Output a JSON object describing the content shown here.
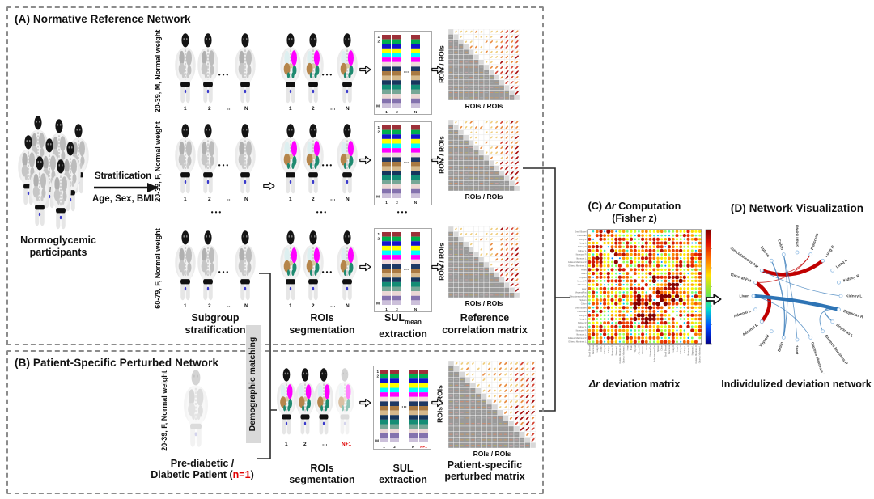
{
  "panels": {
    "a": {
      "title": "(A) Normative Reference Network",
      "crowd_label_line1": "Normoglycemic",
      "crowd_label_line2": "participants",
      "strat_label": "Stratification",
      "strat_sub": "Age, Sex, BMI",
      "rows": [
        {
          "label": "20-39, M, Normal weight"
        },
        {
          "label": "20-39, F, Normal weight"
        },
        {
          "label": "60-79, F, Normal weight"
        }
      ],
      "indices": [
        {
          "t": "1"
        },
        {
          "t": "2"
        },
        {
          "t": "⋯"
        },
        {
          "t": "N"
        }
      ],
      "dots": "•••",
      "sul_rows_top": [
        "1",
        "2"
      ],
      "sul_row_bottom": "M",
      "sul_cols": [
        {
          "t": "1"
        },
        {
          "t": "2"
        },
        {
          "t": "N"
        }
      ],
      "matrix_axis": "ROIs / ROIs",
      "captions": {
        "subgroup_line1": "Subgroup",
        "subgroup_line2": "stratification",
        "rois_line1": "ROIs",
        "rois_line2": "segmentation",
        "sul_main": "SUL",
        "sul_sub": "mean",
        "sul_line2": "extraction",
        "matrix_line1": "Reference",
        "matrix_line2": "correlation matrix"
      }
    },
    "b": {
      "title": "(B) Patient-Specific Perturbed Network",
      "row_label": "20-39, F, Normal weight",
      "patient_line1": "Pre-diabetic /",
      "patient_line2_prefix": "Diabetic Patient (",
      "patient_n": "n=1",
      "patient_line2_suffix": ")",
      "indices": [
        {
          "t": "1"
        },
        {
          "t": "2"
        },
        {
          "t": "⋯"
        },
        {
          "t": "N+1",
          "red": true
        }
      ],
      "sul_rows_top": [
        "1",
        "2"
      ],
      "sul_row_bottom": "M",
      "sul_cols": [
        {
          "t": "1"
        },
        {
          "t": "2"
        },
        {
          "t": "N"
        },
        {
          "t": "N+1",
          "red": true
        }
      ],
      "captions": {
        "rois_line1": "ROIs",
        "rois_line2": "segmentation",
        "sul_line1": "SUL",
        "sul_line2": "extraction",
        "matrix_line1": "Patient-specific",
        "matrix_line2": "perturbed matrix"
      }
    },
    "matching_label": "Demographic matching",
    "c": {
      "title_prefix": "(C) ",
      "title_italic": "Δr",
      "title_rest": " Computation",
      "title_line2": "(Fisher z)",
      "caption_italic": "Δr",
      "caption_rest": " deviation matrix"
    },
    "d": {
      "title": "(D) Network Visualization",
      "caption": "Individulized deviation network",
      "nodes": [
        "Small Bowel",
        "Pancreas",
        "Lung R",
        "Lung L",
        "Kidney R",
        "Kidney L",
        "Iliopsoas R",
        "Iliopsoas L",
        "Gluteus Maximus R",
        "Gluteus Maximus L",
        "Heart",
        "Brain",
        "Thyroid",
        "Adrenal R",
        "Adrenal L",
        "Liver",
        "Visceral Fat",
        "Subcutaneous Fat",
        "Spleen",
        "Colon"
      ],
      "edges": [
        {
          "a": "Subcutaneous Fat",
          "b": "Lung R",
          "sign": "pos",
          "w": 4.5
        },
        {
          "a": "Visceral Fat",
          "b": "Adrenal R",
          "sign": "pos",
          "w": 4.5
        },
        {
          "a": "Liver",
          "b": "Iliopsoas R",
          "sign": "neg",
          "w": 4.5
        },
        {
          "a": "Visceral Fat",
          "b": "Pancreas",
          "sign": "pos",
          "w": 1
        },
        {
          "a": "Subcutaneous Fat",
          "b": "Pancreas",
          "sign": "pos",
          "w": 0.8
        },
        {
          "a": "Spleen",
          "b": "Brain",
          "sign": "neg",
          "w": 1.4
        },
        {
          "a": "Colon",
          "b": "Brain",
          "sign": "neg",
          "w": 1
        },
        {
          "a": "Colon",
          "b": "Heart",
          "sign": "neg",
          "w": 0.8
        },
        {
          "a": "Subcutaneous Fat",
          "b": "Kidney L",
          "sign": "neg",
          "w": 0.8
        },
        {
          "a": "Iliopsoas R",
          "b": "Iliopsoas L",
          "sign": "neg",
          "w": 1.4
        },
        {
          "a": "Iliopsoas R",
          "b": "Gluteus Maximus R",
          "sign": "neg",
          "w": 0.9
        },
        {
          "a": "Liver",
          "b": "Gluteus Maximus L",
          "sign": "neg",
          "w": 0.8
        }
      ]
    }
  },
  "colors": {
    "edge_pos": "#C00000",
    "edge_neg": "#2E74B5",
    "node_ring": "#9DC3E6",
    "red_text": "#E00000",
    "matrix_gray": "#9a9a9a",
    "organ_lung": "#FF00FF",
    "organ_liver": "#B5854B",
    "organ_spleen": "#1F8A70",
    "organ_kidney": "#1F8A70",
    "organ_pancreas": "#D9C9A0",
    "sul_segments": [
      "#9E3039",
      "#00B050",
      "#1414CC",
      "#FFFF00",
      "#00FFFF",
      "#FF00FF",
      "#F2DCDB",
      "#1F3864",
      "#A97942",
      "#D6B98C",
      "#17375E",
      "#138D75",
      "#76A797",
      "#EBD7D5",
      "#8472AE",
      "#CCC0DA"
    ]
  }
}
